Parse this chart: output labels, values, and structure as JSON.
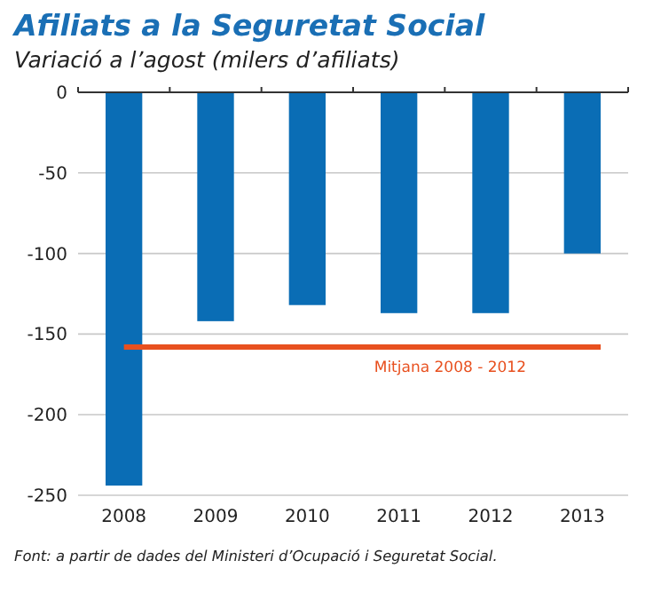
{
  "chart_data": {
    "type": "bar",
    "title": "Afiliats a la Seguretat Social",
    "subtitle": "Variació a l’agost (milers d’afiliats)",
    "categories": [
      "2008",
      "2009",
      "2010",
      "2011",
      "2012",
      "2013"
    ],
    "values": [
      -244,
      -142,
      -132,
      -137,
      -137,
      -100
    ],
    "color": "#0a6db5",
    "ylim": [
      -250,
      0
    ],
    "yticks": [
      -250,
      -200,
      -150,
      -100,
      -50,
      0
    ],
    "grid": "y",
    "ref_lines": [
      {
        "axis": "y",
        "value": -158,
        "label": "Mitjana  2008 - 2012",
        "color": "#e8501f"
      }
    ],
    "annotations": [
      "Font: a partir de dades del Ministeri d’Ocupació i Seguretat Social."
    ]
  }
}
